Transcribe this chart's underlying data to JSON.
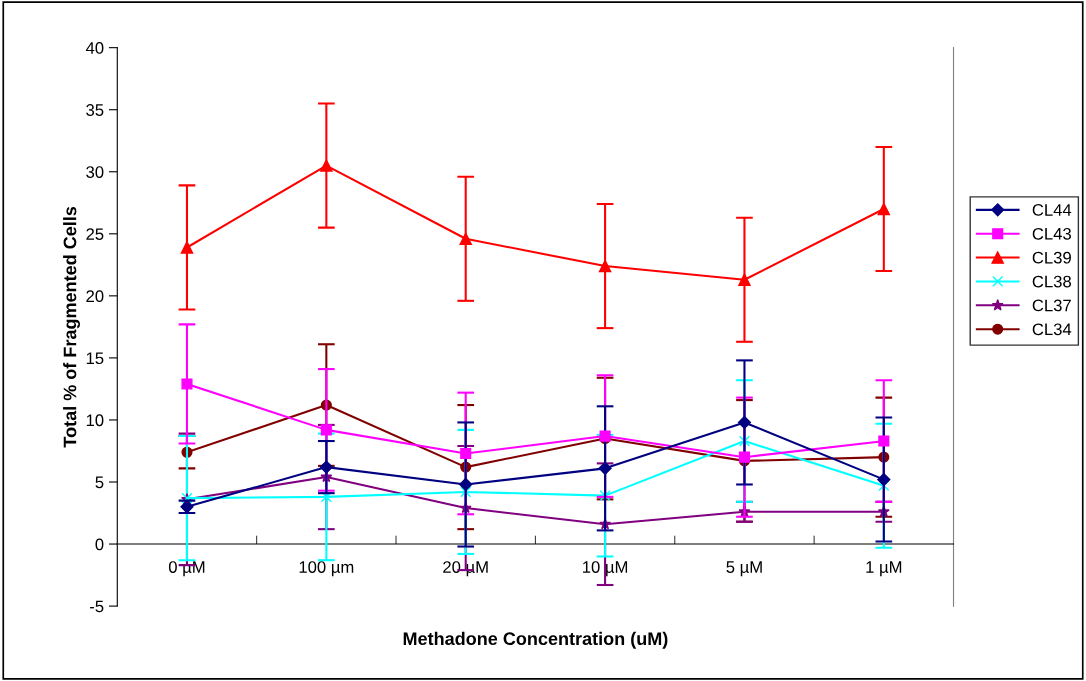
{
  "chart_data": {
    "type": "line",
    "xlabel": "Methadone Concentration (uM)",
    "ylabel": "Total % of Fragmented Cells",
    "categories": [
      "0 µM",
      "100 µm",
      "20 µM",
      "10 µM",
      "5 µM",
      "1 µM"
    ],
    "ylim": [
      -5,
      40
    ],
    "yticks": [
      -5,
      0,
      5,
      10,
      15,
      20,
      25,
      30,
      35,
      40
    ],
    "grid": false,
    "legend": "right",
    "series": [
      {
        "name": "CL44",
        "color": "#000080",
        "marker": "diamond",
        "values": [
          3.0,
          6.2,
          4.8,
          6.1,
          9.8,
          5.2
        ],
        "errors": [
          0.5,
          2.1,
          5.0,
          5.0,
          5.0,
          5.0
        ]
      },
      {
        "name": "CL43",
        "color": "#ff00ff",
        "marker": "square",
        "values": [
          12.9,
          9.2,
          7.3,
          8.7,
          7.0,
          8.3
        ],
        "errors": [
          4.8,
          4.9,
          4.9,
          4.9,
          4.8,
          4.9
        ]
      },
      {
        "name": "CL39",
        "color": "#ff0000",
        "marker": "triangle",
        "values": [
          23.9,
          30.5,
          24.6,
          22.4,
          21.3,
          27.0
        ],
        "errors": [
          5.0,
          5.0,
          5.0,
          5.0,
          5.0,
          5.0
        ]
      },
      {
        "name": "CL38",
        "color": "#00ffff",
        "marker": "cross",
        "values": [
          3.7,
          3.8,
          4.2,
          3.9,
          8.3,
          4.7
        ],
        "errors": [
          5.0,
          5.1,
          5.0,
          4.9,
          4.9,
          5.0
        ]
      },
      {
        "name": "CL37",
        "color": "#800080",
        "marker": "star",
        "values": [
          3.6,
          5.4,
          2.9,
          1.6,
          2.6,
          2.6
        ],
        "errors": [
          5.3,
          4.2,
          5.0,
          4.9,
          0.8,
          0.8
        ]
      },
      {
        "name": "CL34",
        "color": "#800000",
        "marker": "circle",
        "values": [
          7.4,
          11.2,
          6.2,
          8.5,
          6.7,
          7.0
        ],
        "errors": [
          1.3,
          4.9,
          5.0,
          4.9,
          4.9,
          4.8
        ]
      }
    ]
  }
}
